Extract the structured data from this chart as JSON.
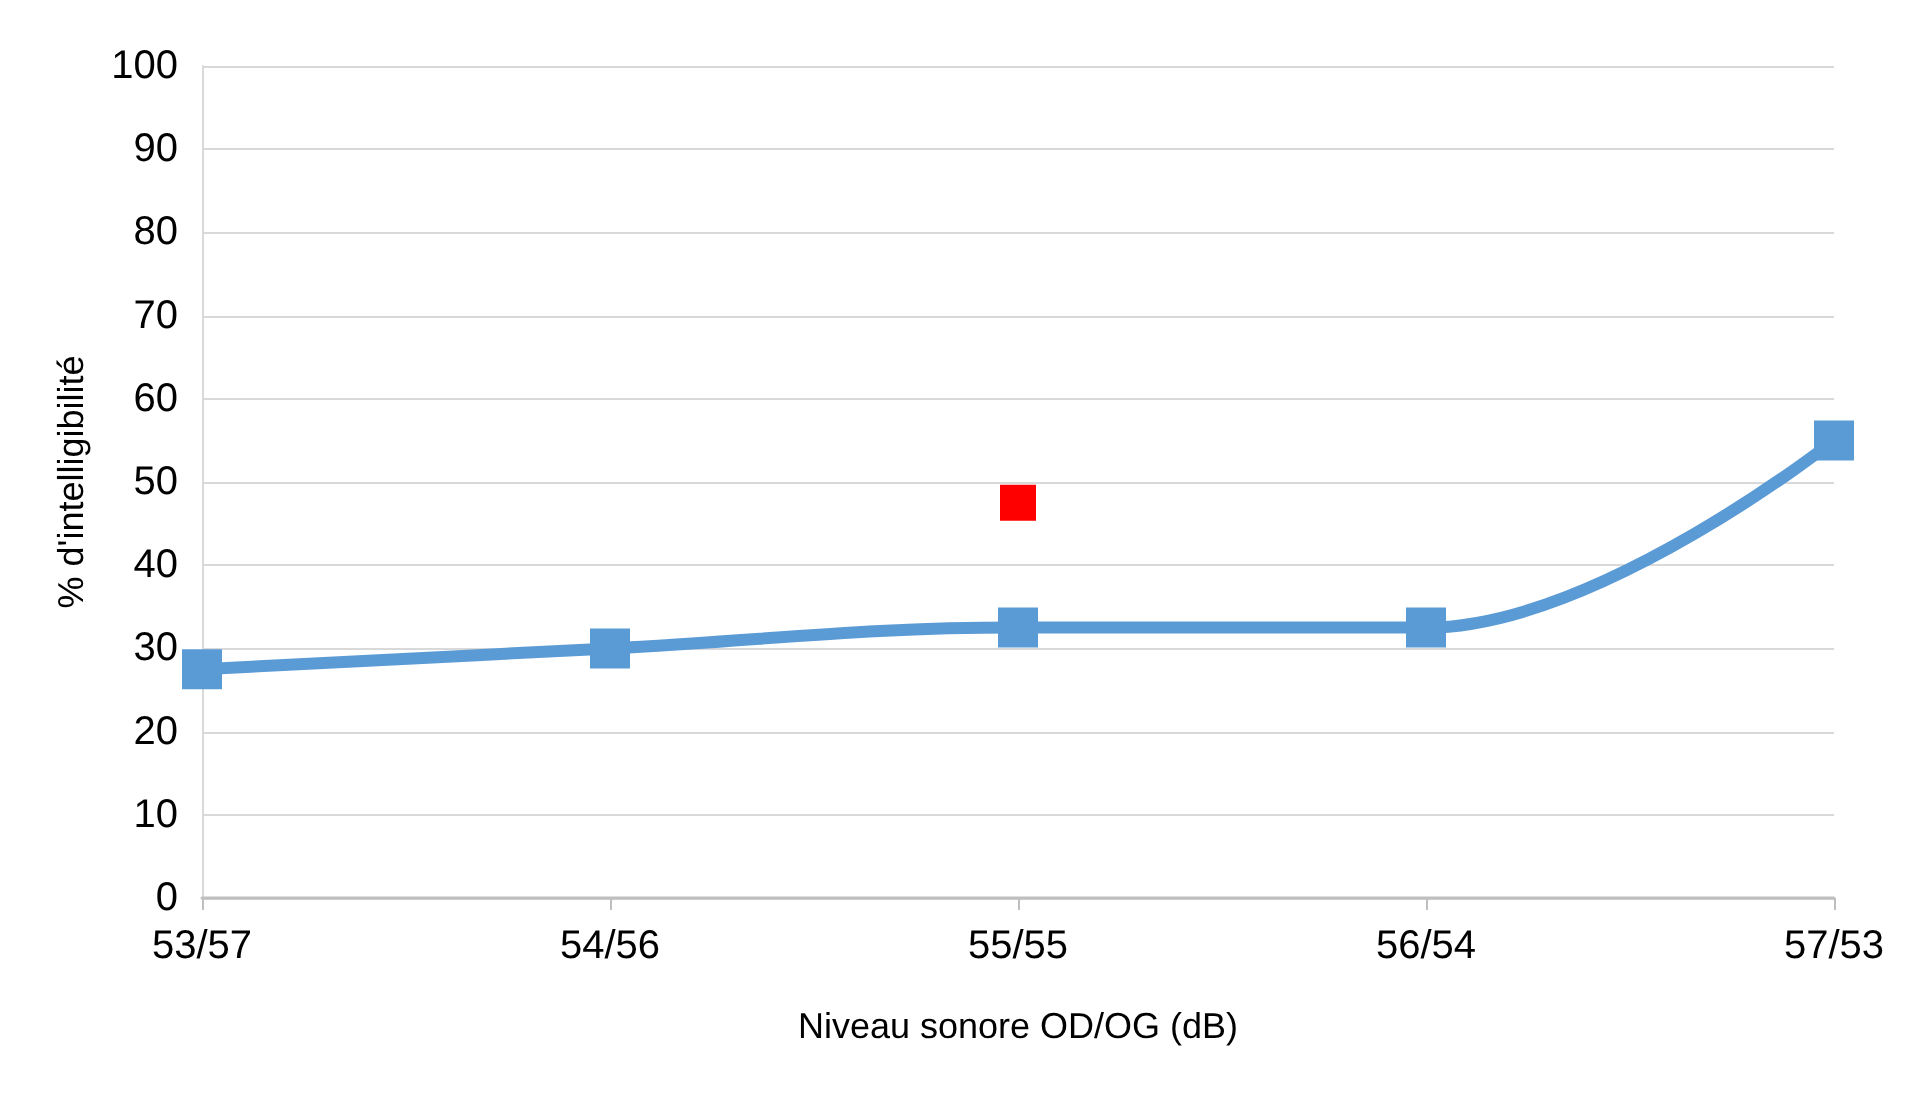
{
  "chart_data": {
    "type": "line",
    "xlabel": "Niveau sonore OD/OG (dB)",
    "ylabel": "% d'intelligibilité",
    "categories": [
      "53/57",
      "54/56",
      "55/55",
      "56/54",
      "57/53"
    ],
    "series": [
      {
        "color": "#5b9bd5",
        "values": [
          27.5,
          30,
          32.5,
          32.5,
          55
        ]
      },
      {
        "type": "scatter",
        "color": "#ff0000",
        "x": [
          "55/55"
        ],
        "values": [
          47.5
        ]
      }
    ],
    "ylim": [
      0,
      100
    ],
    "yticks": [
      0,
      10,
      20,
      30,
      40,
      50,
      60,
      70,
      80,
      90,
      100
    ],
    "grid": "y",
    "marker": "square",
    "line_style": "solid"
  }
}
